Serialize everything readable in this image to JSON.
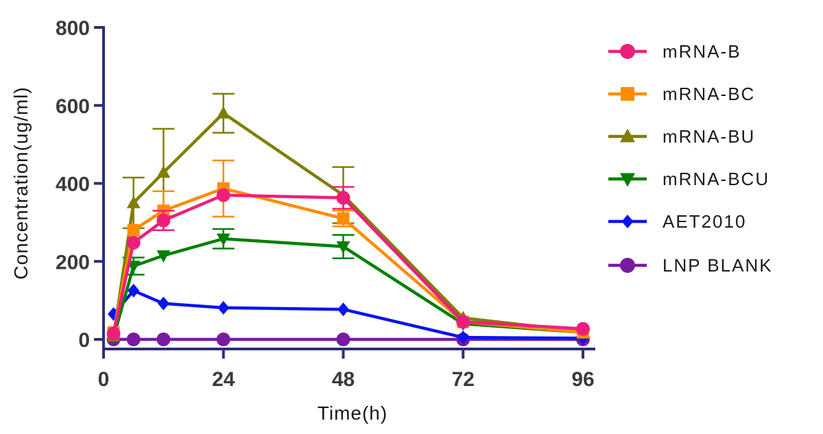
{
  "chart_data": {
    "type": "line",
    "title": "",
    "xlabel": "Time(h)",
    "ylabel": "Concentration(ug/ml)",
    "xlim": [
      0,
      96
    ],
    "ylim": [
      0,
      800
    ],
    "x_ticks": [
      "0",
      "24",
      "48",
      "72",
      "96"
    ],
    "y_ticks": [
      "0",
      "200",
      "400",
      "600",
      "800"
    ],
    "grid": false,
    "legend_position": "right",
    "series": [
      {
        "name": "mRNA-B",
        "color": "#ee1f7a",
        "marker": "circle",
        "x": [
          2,
          6,
          12,
          24,
          48,
          72,
          96
        ],
        "y": [
          15,
          248,
          305,
          370,
          363,
          45,
          27
        ],
        "err": [
          0,
          0,
          25,
          0,
          28,
          0,
          0
        ]
      },
      {
        "name": "mRNA-BC",
        "color": "#ff8c00",
        "marker": "square",
        "x": [
          2,
          6,
          12,
          24,
          48,
          72,
          96
        ],
        "y": [
          18,
          280,
          330,
          387,
          310,
          45,
          18
        ],
        "err": [
          0,
          0,
          50,
          72,
          20,
          0,
          0
        ]
      },
      {
        "name": "mRNA-BU",
        "color": "#7f7f00",
        "marker": "triangle-up",
        "x": [
          2,
          6,
          12,
          24,
          48,
          72,
          96
        ],
        "y": [
          8,
          350,
          428,
          580,
          370,
          55,
          20
        ],
        "err": [
          0,
          65,
          112,
          50,
          72,
          0,
          0
        ]
      },
      {
        "name": "mRNA-BCU",
        "color": "#008000",
        "marker": "triangle-down",
        "x": [
          2,
          6,
          12,
          24,
          48,
          72,
          96
        ],
        "y": [
          5,
          188,
          215,
          258,
          238,
          40,
          18
        ],
        "err": [
          0,
          22,
          0,
          25,
          30,
          0,
          0
        ]
      },
      {
        "name": "AET2010",
        "color": "#0a14f0",
        "marker": "diamond",
        "x": [
          2,
          6,
          12,
          24,
          48,
          72,
          96
        ],
        "y": [
          65,
          125,
          92,
          81,
          77,
          5,
          3
        ],
        "err": [
          0,
          0,
          0,
          0,
          0,
          0,
          0
        ]
      },
      {
        "name": "LNP BLANK",
        "color": "#7a1aa0",
        "marker": "circle",
        "x": [
          2,
          6,
          12,
          24,
          48,
          72,
          96
        ],
        "y": [
          0,
          0,
          0,
          0,
          0,
          0,
          0
        ],
        "err": [
          0,
          0,
          0,
          0,
          0,
          0,
          0
        ]
      }
    ]
  },
  "axis_color": "#2e2e7a",
  "legend_labels": [
    "mRNA-B",
    "mRNA-BC",
    "mRNA-BU",
    "mRNA-BCU",
    "AET2010",
    "LNP BLANK"
  ]
}
